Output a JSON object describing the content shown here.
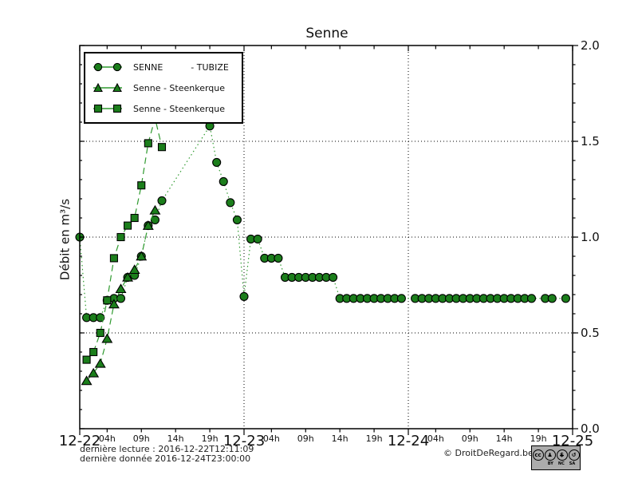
{
  "title": "Senne",
  "y_axis": {
    "label": "Débit en m³/s",
    "tick_labels": [
      "0.0",
      "0.5",
      "1.0",
      "1.5",
      "2.0"
    ],
    "tick_values": [
      0.0,
      0.5,
      1.0,
      1.5,
      2.0
    ],
    "minor_step": 0.1
  },
  "x_axis": {
    "day_labels": [
      "12-22",
      "12-23",
      "12-24",
      "12-25"
    ],
    "day_hours": [
      0,
      24,
      48,
      72
    ],
    "hour_labels": [
      "04h",
      "09h",
      "14h",
      "19h"
    ],
    "hour_offsets": [
      4,
      9,
      14,
      19
    ]
  },
  "legend": [
    {
      "label": "SENNE          - TUBIZE",
      "marker": "circle"
    },
    {
      "label": "Senne - Steenkerque",
      "marker": "triangle"
    },
    {
      "label": "Senne - Steenkerque",
      "marker": "square"
    }
  ],
  "footnotes": {
    "line1": "dernière lecture : 2016-12-22T12:11:09",
    "line2": "dernière donnée  2016-12-24T23:00:00"
  },
  "copyright": "© DroitDeRegard.be",
  "cc_badge": {
    "cc": "cc",
    "by": "♟",
    "nc": "$",
    "sa": "↺",
    "labels": [
      "BY",
      "NC",
      "SA"
    ]
  },
  "colors": {
    "marker_fill": "#1b7e1b",
    "marker_edge": "#000000",
    "line_green": "#2f9a2f",
    "grid": "#000000",
    "frame": "#000000"
  },
  "chart_data": {
    "type": "line",
    "title": "Senne",
    "ylabel": "Débit en m³/s",
    "ylim": [
      0,
      2
    ],
    "xlim_hours": [
      0,
      72
    ],
    "x_unit": "hours since 2016-12-22 00:00",
    "grid": "dotted horizontal at 0.5/1.0/1.5 and vertical at day boundaries 12-23, 12-24",
    "legend_position": "upper left",
    "y_gridlines": [
      0.5,
      1.0,
      1.5
    ],
    "x_gridlines_hours": [
      24,
      48
    ],
    "series": [
      {
        "name": "SENNE - TUBIZE",
        "marker": "circle",
        "linestyle": "dotted",
        "x": [
          0,
          1,
          2,
          3,
          4,
          5,
          6,
          7,
          8,
          9,
          10,
          11,
          12,
          19,
          20,
          21,
          22,
          23,
          24,
          25,
          26,
          27,
          28,
          29,
          30,
          31,
          32,
          33,
          34,
          35,
          36,
          37,
          38,
          39,
          40,
          41,
          42,
          43,
          44,
          45,
          46,
          47,
          49,
          50,
          51,
          52,
          53,
          54,
          55,
          56,
          57,
          58,
          59,
          60,
          61,
          62,
          63,
          64,
          65,
          66,
          68,
          69,
          71
        ],
        "y": [
          1.0,
          0.58,
          0.58,
          0.58,
          0.67,
          0.68,
          0.68,
          0.79,
          0.8,
          0.9,
          1.06,
          1.09,
          1.19,
          1.58,
          1.39,
          1.29,
          1.18,
          1.09,
          0.69,
          0.99,
          0.99,
          0.89,
          0.89,
          0.89,
          0.79,
          0.79,
          0.79,
          0.79,
          0.79,
          0.79,
          0.79,
          0.79,
          0.68,
          0.68,
          0.68,
          0.68,
          0.68,
          0.68,
          0.68,
          0.68,
          0.68,
          0.68,
          0.68,
          0.68,
          0.68,
          0.68,
          0.68,
          0.68,
          0.68,
          0.68,
          0.68,
          0.68,
          0.68,
          0.68,
          0.68,
          0.68,
          0.68,
          0.68,
          0.68,
          0.68,
          0.68,
          0.68,
          0.68
        ]
      },
      {
        "name": "Senne - Steenkerque",
        "marker": "triangle",
        "linestyle": "dashed",
        "x": [
          1,
          2,
          3,
          4,
          5,
          6,
          7,
          8,
          9,
          10,
          11
        ],
        "y": [
          0.25,
          0.29,
          0.34,
          0.47,
          0.65,
          0.73,
          0.79,
          0.83,
          0.9,
          1.06,
          1.14
        ]
      },
      {
        "name": "Senne - Steenkerque",
        "marker": "square",
        "linestyle": "dashed",
        "x": [
          1,
          2,
          3,
          4,
          5,
          6,
          7,
          8,
          9,
          10,
          11,
          12
        ],
        "y": [
          0.36,
          0.4,
          0.5,
          0.67,
          0.89,
          1.0,
          1.06,
          1.1,
          1.27,
          1.49,
          1.62,
          1.47
        ]
      }
    ]
  }
}
